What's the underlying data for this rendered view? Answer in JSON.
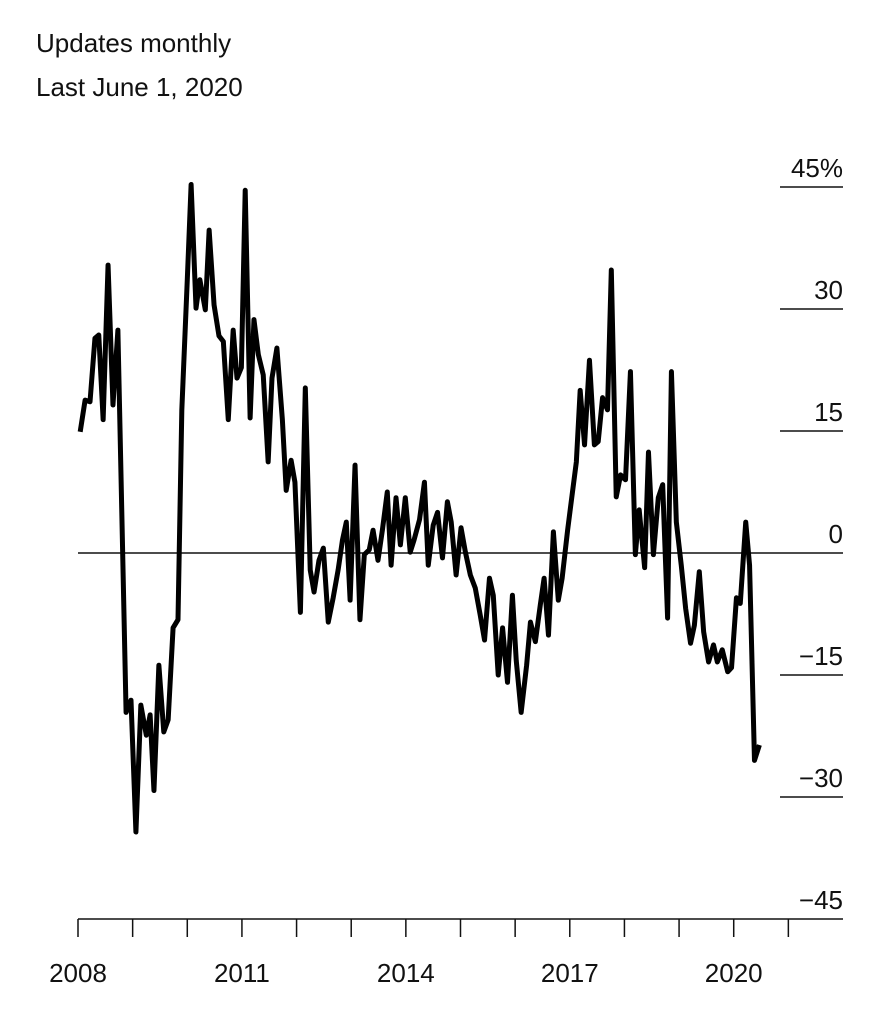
{
  "chart_data": {
    "type": "line",
    "subtitle": "Updates monthly",
    "note": "Last June 1, 2020",
    "x": [
      2008.04,
      2008.13,
      2008.22,
      2008.31,
      2008.38,
      2008.46,
      2008.55,
      2008.64,
      2008.73,
      2008.88,
      2008.97,
      2009.06,
      2009.15,
      2009.25,
      2009.32,
      2009.39,
      2009.48,
      2009.57,
      2009.65,
      2009.74,
      2009.83,
      2009.9,
      2010.0,
      2010.07,
      2010.16,
      2010.23,
      2010.33,
      2010.4,
      2010.49,
      2010.58,
      2010.66,
      2010.75,
      2010.84,
      2010.91,
      2010.99,
      2011.06,
      2011.15,
      2011.22,
      2011.3,
      2011.39,
      2011.48,
      2011.55,
      2011.64,
      2011.74,
      2011.81,
      2011.9,
      2011.97,
      2012.07,
      2012.16,
      2012.25,
      2012.32,
      2012.41,
      2012.49,
      2012.58,
      2012.67,
      2012.76,
      2012.84,
      2012.91,
      2012.98,
      2013.07,
      2013.16,
      2013.24,
      2013.33,
      2013.4,
      2013.49,
      2013.57,
      2013.66,
      2013.73,
      2013.82,
      2013.9,
      2013.99,
      2014.08,
      2014.15,
      2014.25,
      2014.34,
      2014.41,
      2014.5,
      2014.58,
      2014.67,
      2014.76,
      2014.83,
      2014.92,
      2015.01,
      2015.09,
      2015.18,
      2015.27,
      2015.36,
      2015.44,
      2015.53,
      2015.6,
      2015.69,
      2015.77,
      2015.86,
      2015.95,
      2016.02,
      2016.11,
      2016.21,
      2016.28,
      2016.37,
      2016.46,
      2016.53,
      2016.61,
      2016.7,
      2016.79,
      2016.86,
      2016.96,
      2017.03,
      2017.12,
      2017.19,
      2017.27,
      2017.36,
      2017.45,
      2017.52,
      2017.6,
      2017.69,
      2017.76,
      2017.85,
      2017.93,
      2018.02,
      2018.11,
      2018.2,
      2018.27,
      2018.37,
      2018.44,
      2018.53,
      2018.62,
      2018.7,
      2018.79,
      2018.86,
      2018.95,
      2019.04,
      2019.12,
      2019.21,
      2019.28,
      2019.37,
      2019.45,
      2019.54,
      2019.63,
      2019.7,
      2019.79,
      2019.89,
      2019.96,
      2020.05,
      2020.12,
      2020.22,
      2020.29,
      2020.38,
      2020.47
    ],
    "series": [
      {
        "color": "#000000",
        "values": [
          14.9,
          18.8,
          18.6,
          26.4,
          26.8,
          16.4,
          35.4,
          18.2,
          27.4,
          -19.6,
          -18.1,
          -34.3,
          -18.7,
          -22.4,
          -19.9,
          -29.2,
          -13.8,
          -22.0,
          -20.5,
          -9.2,
          -8.2,
          17.6,
          33.6,
          45.3,
          30.1,
          33.6,
          29.9,
          39.7,
          30.5,
          26.7,
          26.0,
          16.4,
          27.4,
          21.5,
          22.8,
          44.6,
          16.6,
          28.7,
          24.4,
          21.9,
          11.2,
          21.5,
          25.2,
          16.4,
          7.7,
          11.4,
          8.7,
          -7.3,
          20.3,
          -2.1,
          -4.8,
          -0.9,
          0.6,
          -8.5,
          -5.5,
          -2.1,
          1.6,
          3.8,
          -5.8,
          10.8,
          -8.2,
          -0.2,
          0.4,
          2.8,
          -0.9,
          2.8,
          7.5,
          -1.5,
          6.8,
          1.0,
          6.8,
          0.1,
          1.6,
          4.1,
          8.7,
          -1.5,
          3.4,
          5.0,
          -0.6,
          6.3,
          3.8,
          -2.7,
          3.1,
          0.1,
          -2.7,
          -4.3,
          -7.6,
          -10.7,
          -3.1,
          -5.2,
          -15.0,
          -9.2,
          -15.9,
          -5.2,
          -13.2,
          -19.6,
          -13.8,
          -8.5,
          -10.9,
          -6.4,
          -3.1,
          -10.1,
          2.6,
          -5.8,
          -3.1,
          2.8,
          6.5,
          11.2,
          20.0,
          13.3,
          23.7,
          13.3,
          13.7,
          19.1,
          17.6,
          34.8,
          6.9,
          9.6,
          9.0,
          22.3,
          -0.2,
          5.3,
          -1.8,
          12.4,
          -0.2,
          6.8,
          8.4,
          -8.0,
          22.3,
          3.8,
          -1.5,
          -6.8,
          -11.1,
          -8.9,
          -2.3,
          -9.7,
          -13.4,
          -11.3,
          -13.4,
          -11.9,
          -14.6,
          -14.1,
          -5.5,
          -6.2,
          3.8,
          -1.5,
          -25.5,
          -23.6
        ]
      }
    ],
    "xlim": [
      2008,
      2022
    ],
    "xticks": [
      2008,
      2011,
      2014,
      2017,
      2020
    ],
    "xticks_minor": [
      2009,
      2010,
      2012,
      2013,
      2015,
      2016,
      2018,
      2019,
      2021
    ],
    "ylim": [
      -45,
      45
    ],
    "yticks": [
      {
        "value": 45,
        "label": "45%"
      },
      30,
      15,
      0,
      {
        "value": -15,
        "label": "−15"
      },
      {
        "value": -30,
        "label": "−30"
      },
      {
        "value": -45,
        "label": "−45"
      }
    ]
  }
}
